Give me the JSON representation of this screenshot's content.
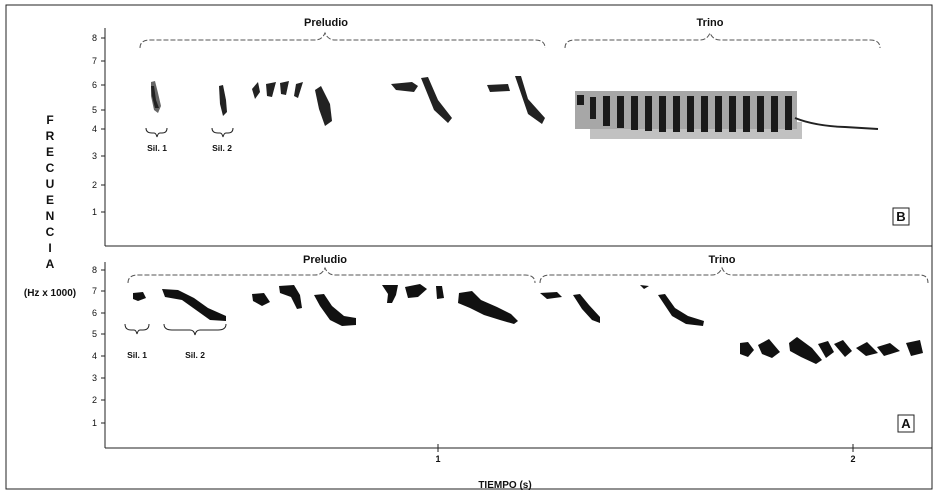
{
  "y_axis_letters": [
    "F",
    "R",
    "E",
    "C",
    "U",
    "E",
    "N",
    "C",
    "I",
    "A"
  ],
  "y_axis_unit": "(Hz x 1000)",
  "x_axis_label": "TIEMPO (s)",
  "x_ticks": [
    "1",
    "2"
  ],
  "panel_b": {
    "label": "B",
    "y_ticks": [
      "1",
      "2",
      "3",
      "4",
      "5",
      "6",
      "7",
      "8"
    ],
    "sections": [
      "Preludio",
      "Trino"
    ],
    "syllables": [
      "Sil. 1",
      "Sil. 2"
    ]
  },
  "panel_a": {
    "label": "A",
    "y_ticks": [
      "1",
      "2",
      "3",
      "4",
      "5",
      "6",
      "7",
      "8"
    ],
    "sections": [
      "Preludio",
      "Trino"
    ],
    "syllables": [
      "Sil. 1",
      "Sil. 2"
    ]
  }
}
